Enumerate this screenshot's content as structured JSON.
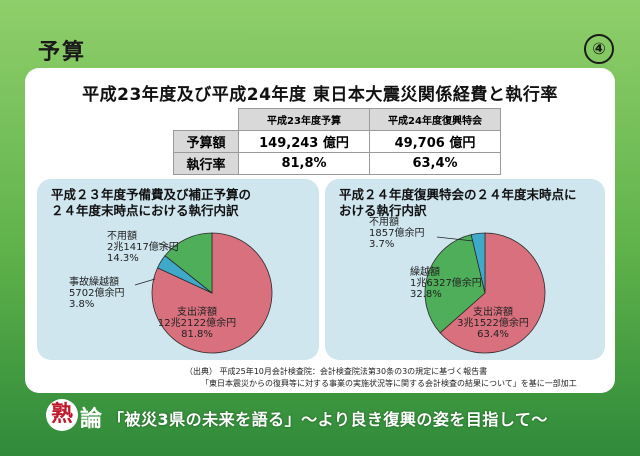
{
  "header": {
    "title": "予算",
    "page_number": "④"
  },
  "main_title": "平成23年度及び平成24年度 東日本大震災関係経費と執行率",
  "summary_table": {
    "columns": [
      "平成23年度予算",
      "平成24年度復興特会"
    ],
    "rows": [
      {
        "label": "予算額",
        "values": [
          "149,243 億円",
          "49,706 億円"
        ]
      },
      {
        "label": "執行率",
        "values": [
          "81,8%",
          "63,4%"
        ]
      }
    ]
  },
  "chart_data": [
    {
      "type": "pie",
      "title": "平成23年度予備費及び補正予算の 24年度末時点における執行内訳",
      "title_lines": [
        "平成２３年度予備費及び補正予算の",
        "２４年度末時点における執行内訳"
      ],
      "unit": "%",
      "slices": [
        {
          "name": "支出済額",
          "amount": "12兆2122億余円",
          "value": 81.8,
          "color": "#d9707e"
        },
        {
          "name": "事故繰越額",
          "amount": "5702億余円",
          "value": 3.8,
          "color": "#3fa9c9"
        },
        {
          "name": "不用額",
          "amount": "2兆1417億余円",
          "value": 14.3,
          "color": "#4fae5a"
        }
      ],
      "labels_display": [
        [
          "支出済額",
          "12兆2122億余円",
          "81.8%"
        ],
        [
          "事故繰越額",
          "5702億余円",
          "3.8%"
        ],
        [
          "不用額",
          "2兆1417億余円",
          "14.3%"
        ]
      ]
    },
    {
      "type": "pie",
      "title": "平成24年度復興特会の24年度末時点における執行内訳",
      "title_lines": [
        "平成２４年度復興特会の２４年度末時点に",
        "おける執行内訳"
      ],
      "unit": "%",
      "slices": [
        {
          "name": "支出済額",
          "amount": "3兆1522億余円",
          "value": 63.4,
          "color": "#d9707e"
        },
        {
          "name": "繰越額",
          "amount": "1兆6327億余円",
          "value": 32.8,
          "color": "#4fae5a"
        },
        {
          "name": "不用額",
          "amount": "1857億余円",
          "value": 3.7,
          "color": "#3fa9c9"
        }
      ],
      "labels_display": [
        [
          "支出済額",
          "3兆1522億余円",
          "63.4%"
        ],
        [
          "繰越額",
          "1兆6327億余円",
          "32.8%"
        ],
        [
          "不用額",
          "1857億余円",
          "3.7%"
        ]
      ]
    }
  ],
  "source": {
    "line1": "（出典） 平成25年10月会計検査院：会計検査院法第30条の3の規定に基づく報告書",
    "line2": "「東日本震災からの復興等に対する事業の実施状況等に関する会計検査の結果について」を基に一部加工"
  },
  "footer": {
    "kanji1": "熟",
    "kanji2": "論",
    "text": "「被災3県の未来を語る」〜より良き復興の姿を目指して〜"
  }
}
